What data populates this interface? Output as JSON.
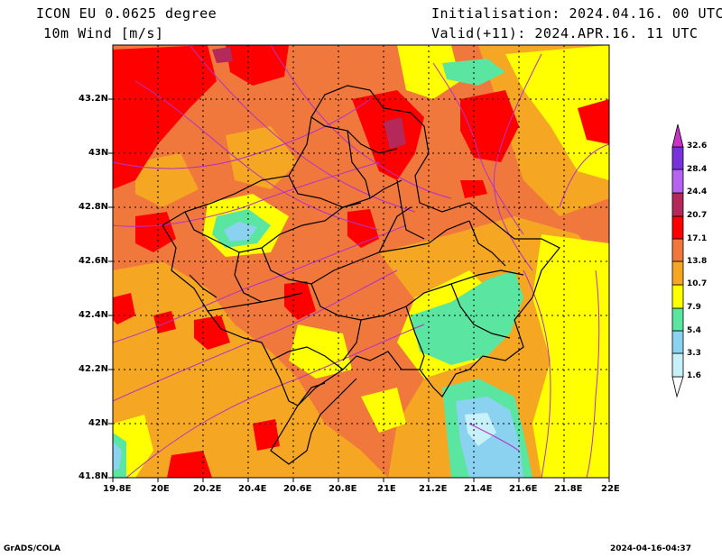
{
  "header": {
    "model_line": "ICON EU 0.0625 degree",
    "field_line": "10m Wind [m/s]",
    "init_line": "Initialisation: 2024.04.16. 00 UTC",
    "valid_line": "Valid(+11): 2024.APR.16. 11 UTC"
  },
  "axes": {
    "x_ticks": [
      "19.8E",
      "20E",
      "20.2E",
      "20.4E",
      "20.6E",
      "20.8E",
      "21E",
      "21.2E",
      "21.4E",
      "21.6E",
      "21.8E",
      "22E"
    ],
    "y_ticks": [
      "43.2N",
      "43N",
      "42.8N",
      "42.6N",
      "42.4N",
      "42.2N",
      "42N",
      "41.8N"
    ]
  },
  "colorbar": {
    "levels": [
      "1.6",
      "3.3",
      "5.4",
      "7.9",
      "10.7",
      "13.8",
      "17.1",
      "20.7",
      "24.4",
      "28.4",
      "32.6"
    ],
    "colors": [
      "#c8f0f8",
      "#8ad2f0",
      "#5ae6a0",
      "#ffff00",
      "#f5a623",
      "#f0783c",
      "#ff0000",
      "#b4285a",
      "#b464f0",
      "#7832dc",
      "#c832c8"
    ]
  },
  "footer": {
    "left": "GrADS/COLA",
    "right": "2024-04-16-04:37"
  }
}
